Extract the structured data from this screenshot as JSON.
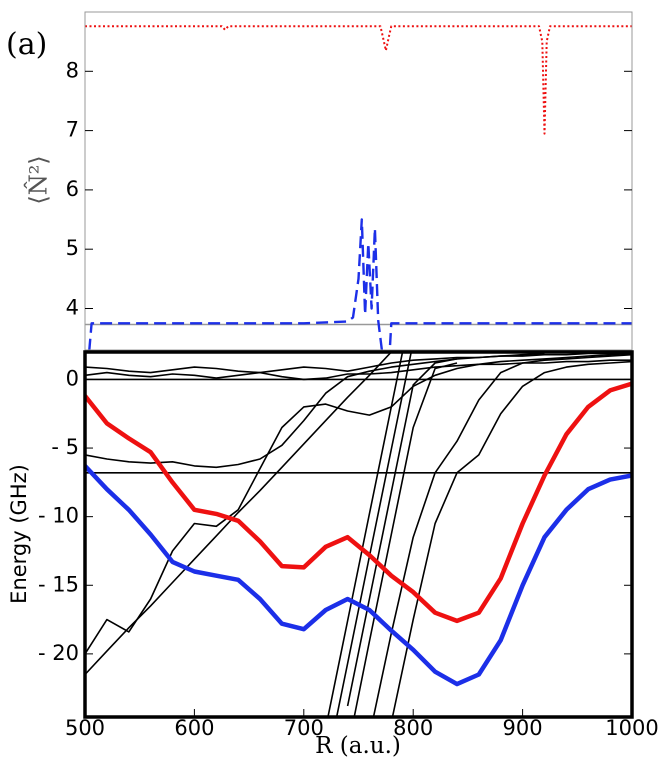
{
  "chart_data": [
    {
      "type": "line",
      "panel_label": "(a)",
      "ylabel": "⟨N̂²⟩",
      "x": [
        500,
        503,
        506,
        550,
        600,
        625,
        628,
        631,
        700,
        740,
        745,
        750,
        753,
        756,
        759,
        762,
        765,
        768,
        770,
        772,
        775,
        778,
        780,
        800,
        850,
        900,
        915,
        918,
        920,
        922,
        925,
        950,
        1000
      ],
      "xlim": [
        500,
        1000
      ],
      "ylim": [
        3.3,
        9.0
      ],
      "yticks": [
        4,
        5,
        6,
        7,
        8
      ],
      "series": [
        {
          "color": "#999999",
          "style": "solid",
          "values": [
            3.73,
            3.73,
            3.73,
            3.73,
            3.73,
            3.73,
            3.73,
            3.73,
            3.73,
            3.73,
            3.73,
            3.73,
            3.73,
            3.73,
            3.73,
            3.73,
            3.73,
            3.73,
            3.73,
            3.73,
            3.73,
            3.73,
            3.73,
            3.73,
            3.73,
            3.73,
            3.73,
            3.73,
            3.73,
            3.73,
            3.73,
            3.73,
            3.73
          ]
        },
        {
          "color": "#ee1111",
          "style": "dotted",
          "values": [
            8.76,
            8.76,
            8.76,
            8.76,
            8.76,
            8.76,
            8.7,
            8.76,
            8.76,
            8.76,
            8.76,
            8.76,
            8.76,
            8.76,
            8.76,
            8.76,
            8.76,
            8.76,
            8.76,
            8.6,
            8.35,
            8.6,
            8.76,
            8.76,
            8.76,
            8.76,
            8.76,
            8.5,
            6.95,
            8.5,
            8.76,
            8.76,
            8.76
          ]
        },
        {
          "color": "#1c2fe8",
          "style": "dashed",
          "values": [
            3.0,
            3.1,
            3.75,
            3.75,
            3.75,
            3.75,
            3.75,
            3.75,
            3.75,
            3.78,
            3.85,
            4.5,
            5.5,
            3.9,
            5.1,
            4.0,
            5.35,
            3.8,
            3.5,
            3.2,
            3.0,
            3.1,
            3.75,
            3.75,
            3.75,
            3.75,
            3.75,
            3.75,
            3.75,
            3.75,
            3.75,
            3.75,
            3.75
          ]
        }
      ]
    },
    {
      "type": "line",
      "ylabel": "Energy (GHz)",
      "xlabel": "R (a.u.)",
      "x": [
        500,
        520,
        540,
        560,
        580,
        600,
        620,
        640,
        660,
        680,
        700,
        720,
        740,
        760,
        780,
        800,
        820,
        840,
        860,
        880,
        900,
        920,
        940,
        960,
        980,
        1000
      ],
      "xlim": [
        500,
        1000
      ],
      "xticks": [
        500,
        600,
        700,
        800,
        900,
        1000
      ],
      "ylim": [
        -24.6,
        2.0
      ],
      "yticks": [
        0,
        {
          "value": -5,
          "label": "- 5"
        },
        {
          "value": -10,
          "label": "- 10"
        },
        {
          "value": -15,
          "label": "- 15"
        },
        {
          "value": -20,
          "label": "- 20"
        }
      ],
      "series": [
        {
          "color": "#000000",
          "style": "solid",
          "values": [
            0,
            0,
            0,
            0,
            0,
            0,
            0,
            0,
            0,
            0,
            0,
            0,
            0,
            0,
            0,
            0,
            0,
            0,
            0,
            0,
            0,
            0,
            0,
            0,
            0,
            0
          ]
        },
        {
          "color": "#000000",
          "style": "solid",
          "values": [
            -6.8,
            -6.8,
            -6.8,
            -6.8,
            -6.8,
            -6.8,
            -6.8,
            -6.8,
            -6.8,
            -6.8,
            -6.8,
            -6.8,
            -6.8,
            -6.8,
            -6.8,
            -6.8,
            -6.8,
            -6.8,
            -6.8,
            -6.8,
            -6.8,
            -6.8,
            -6.8,
            -6.8,
            -6.8,
            -6.8
          ]
        },
        {
          "color": "#000000",
          "style": "solid",
          "values": [
            0.9,
            0.8,
            0.6,
            0.5,
            0.7,
            0.9,
            0.8,
            0.6,
            0.5,
            0.7,
            0.9,
            0.8,
            0.6,
            0.9,
            1.2,
            1.4,
            1.5,
            1.6,
            1.6,
            1.7,
            1.7,
            1.8,
            1.8,
            1.9,
            1.9,
            1.9
          ]
        },
        {
          "color": "#000000",
          "style": "solid",
          "values": [
            0.3,
            0.5,
            0.3,
            0.2,
            0.4,
            0.3,
            0.1,
            0.3,
            0.5,
            0.2,
            0.0,
            0.1,
            0.4,
            0.4,
            0.5,
            0.7,
            0.9,
            1.0,
            1.1,
            1.1,
            1.2,
            1.2,
            1.3,
            1.3,
            1.4,
            1.4
          ]
        },
        {
          "color": "#000000",
          "style": "solid",
          "values": [
            -21.5,
            -19.8,
            -18.1,
            -16.5,
            -14.8,
            -13.1,
            -11.4,
            -9.7,
            -8.1,
            -6.4,
            -4.7,
            -3.0,
            -1.3,
            0.3,
            2.0,
            null,
            null,
            null,
            null,
            null,
            null,
            null,
            null,
            null,
            null,
            null
          ]
        },
        {
          "color": "#000000",
          "style": "solid",
          "values": [
            -20.0,
            -17.5,
            -18.4,
            -16.0,
            -12.5,
            -10.5,
            -10.7,
            -9.5,
            -6.5,
            -3.5,
            -2.0,
            -1.8,
            -2.3,
            -2.6,
            -2.0,
            -0.5,
            0.3,
            0.8,
            1.1,
            1.3,
            1.4,
            1.5,
            1.6,
            1.7,
            1.8,
            1.9
          ]
        },
        {
          "color": "#000000",
          "style": "solid",
          "values": [
            -5.5,
            -5.8,
            -6.0,
            -6.1,
            -6.0,
            -6.3,
            -6.4,
            -6.2,
            -5.8,
            -4.8,
            -3.0,
            -1.0,
            0.2,
            0.6,
            0.9,
            1.1,
            1.3,
            1.5,
            1.6,
            1.7,
            1.8,
            1.9,
            null,
            null,
            null,
            null
          ]
        },
        {
          "color": "#000000",
          "style": "solid",
          "values": [
            null,
            null,
            null,
            null,
            null,
            null,
            null,
            null,
            null,
            null,
            null,
            -25.4,
            -17.6,
            -9.8,
            -2.0,
            5.8,
            null,
            null,
            null,
            null,
            null,
            null,
            null,
            null,
            null,
            null
          ]
        },
        {
          "color": "#000000",
          "style": "solid",
          "values": [
            null,
            null,
            null,
            null,
            null,
            null,
            null,
            null,
            null,
            null,
            null,
            -28.5,
            -20.7,
            -12.9,
            -5.1,
            2.7,
            null,
            null,
            null,
            null,
            null,
            null,
            null,
            null,
            null,
            null
          ]
        },
        {
          "color": "#000000",
          "style": "solid",
          "values": [
            null,
            null,
            null,
            null,
            null,
            null,
            null,
            null,
            null,
            null,
            null,
            null,
            -23.8,
            -16.0,
            -8.2,
            -0.4,
            1.2,
            1.5,
            null,
            null,
            null,
            null,
            null,
            null,
            null,
            null
          ]
        },
        {
          "color": "#000000",
          "style": "solid",
          "values": [
            null,
            null,
            null,
            null,
            null,
            null,
            null,
            null,
            null,
            null,
            null,
            null,
            -27.0,
            -19.1,
            -11.3,
            -3.5,
            0.8,
            1.2,
            null,
            null,
            null,
            null,
            null,
            null,
            null,
            null
          ]
        },
        {
          "color": "#000000",
          "style": "solid",
          "values": [
            null,
            null,
            null,
            null,
            null,
            null,
            null,
            null,
            null,
            null,
            null,
            null,
            null,
            -26,
            -18.5,
            -11.5,
            -6.8,
            -4.5,
            -1.5,
            0.5,
            1.2,
            1.4,
            1.5,
            1.6,
            1.7,
            1.8
          ]
        },
        {
          "color": "#000000",
          "style": "solid",
          "values": [
            null,
            null,
            null,
            null,
            null,
            null,
            null,
            null,
            null,
            null,
            null,
            null,
            null,
            null,
            -25,
            -17.5,
            -10.5,
            -6.8,
            -5.5,
            -2.5,
            -0.5,
            0.5,
            0.9,
            1.1,
            1.2,
            1.3
          ]
        },
        {
          "color": "#ee1111",
          "style": "bold",
          "values": [
            -1.2,
            -3.2,
            -4.3,
            -5.3,
            -7.5,
            -9.5,
            -9.8,
            -10.3,
            -11.8,
            -13.6,
            -13.7,
            -12.2,
            -11.5,
            -12.8,
            -14.3,
            -15.5,
            -17.0,
            -17.6,
            -17.0,
            -14.5,
            -10.5,
            -7.0,
            -4.0,
            -2.0,
            -0.8,
            -0.3
          ]
        },
        {
          "color": "#1c2fe8",
          "style": "bold",
          "values": [
            -6.3,
            -8.0,
            -9.5,
            -11.3,
            -13.3,
            -14.0,
            -14.3,
            -14.6,
            -16.0,
            -17.8,
            -18.2,
            -16.8,
            -16.0,
            -16.8,
            -18.3,
            -19.7,
            -21.3,
            -22.2,
            -21.5,
            -19.0,
            -15.0,
            -11.5,
            -9.5,
            -8.0,
            -7.3,
            -7.0
          ]
        }
      ]
    }
  ]
}
